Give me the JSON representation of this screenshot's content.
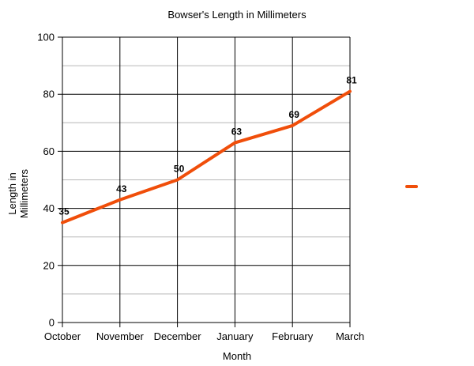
{
  "chart_data": {
    "type": "line",
    "title": "Bowser's Length in Millimeters",
    "xlabel": "Month",
    "ylabel_lines": [
      "Length in",
      "Millimeters"
    ],
    "categories": [
      "October",
      "November",
      "December",
      "January",
      "February",
      "March"
    ],
    "series": [
      {
        "values": [
          35,
          43,
          50,
          63,
          69,
          81
        ],
        "color": "#f04e0a"
      }
    ],
    "ylim": [
      0,
      100
    ],
    "major_ticks": [
      0,
      20,
      40,
      60,
      80,
      100
    ],
    "minor_gridlines": true,
    "major_grid_color": "#000000",
    "minor_grid_color": "#b7b7b7",
    "data_labels": true,
    "legend": "right"
  }
}
